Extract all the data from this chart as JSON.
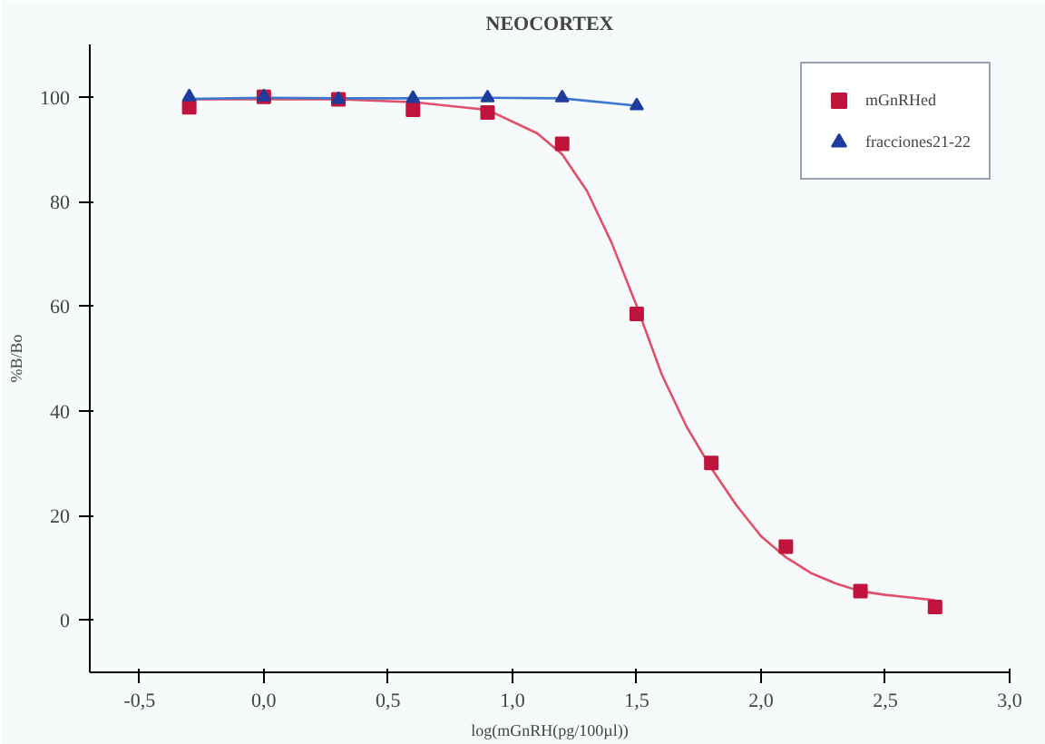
{
  "chart_data": {
    "type": "scatter",
    "title": "NEOCORTEX",
    "xlabel": "log(mGnRH(pg/100µl))",
    "ylabel": "%B/Bo",
    "xlim": [
      -0.7,
      3.0
    ],
    "ylim": [
      -10,
      110
    ],
    "xticks": [
      {
        "value": -0.5,
        "label": "-0,5"
      },
      {
        "value": 0,
        "label": "0,0"
      },
      {
        "value": 0.5,
        "label": "0,5"
      },
      {
        "value": 1,
        "label": "1,0"
      },
      {
        "value": 1.5,
        "label": "1,5"
      },
      {
        "value": 2,
        "label": "2,0"
      },
      {
        "value": 2.5,
        "label": "2,5"
      },
      {
        "value": 3,
        "label": "3,0"
      }
    ],
    "yticks": [
      0,
      20,
      40,
      60,
      80,
      100
    ],
    "grid": false,
    "legend": "top right",
    "series": [
      {
        "name": "mGnRHed",
        "marker": "square",
        "color": "#c0143c",
        "x": [
          -0.3,
          0,
          0.3,
          0.6,
          0.9,
          1.2,
          1.5,
          1.8,
          2.1,
          2.4,
          2.7
        ],
        "values": [
          98,
          100,
          99.5,
          97.5,
          97,
          91,
          58.5,
          30,
          14,
          5.5,
          2.5
        ]
      },
      {
        "name": "fracciones21-22",
        "marker": "triangle",
        "color": "#1e3c9c",
        "x": [
          -0.3,
          0,
          0.3,
          0.6,
          0.9,
          1.2,
          1.5
        ],
        "values": [
          100,
          100,
          99.5,
          99.7,
          99.8,
          99.8,
          98.3
        ]
      },
      {
        "type": "line",
        "marker": "none",
        "color": "#e0506a",
        "x": [
          -0.3,
          0.3,
          0.6,
          0.9,
          1.1,
          1.2,
          1.3,
          1.4,
          1.5,
          1.6,
          1.7,
          1.8,
          1.9,
          2.0,
          2.1,
          2.2,
          2.3,
          2.4,
          2.5,
          2.6,
          2.7
        ],
        "values": [
          99.5,
          99.5,
          99,
          97.5,
          93,
          89,
          82,
          72,
          60,
          47,
          37,
          29,
          22,
          16,
          12,
          9,
          7,
          5.5,
          4.8,
          4.3,
          3.8
        ]
      },
      {
        "type": "line",
        "marker": "none",
        "color": "#3c78d0",
        "x": [
          -0.3,
          0,
          0.3,
          0.6,
          0.9,
          1.2,
          1.5
        ],
        "values": [
          99.6,
          99.8,
          99.7,
          99.7,
          99.8,
          99.7,
          98.3
        ]
      }
    ]
  }
}
